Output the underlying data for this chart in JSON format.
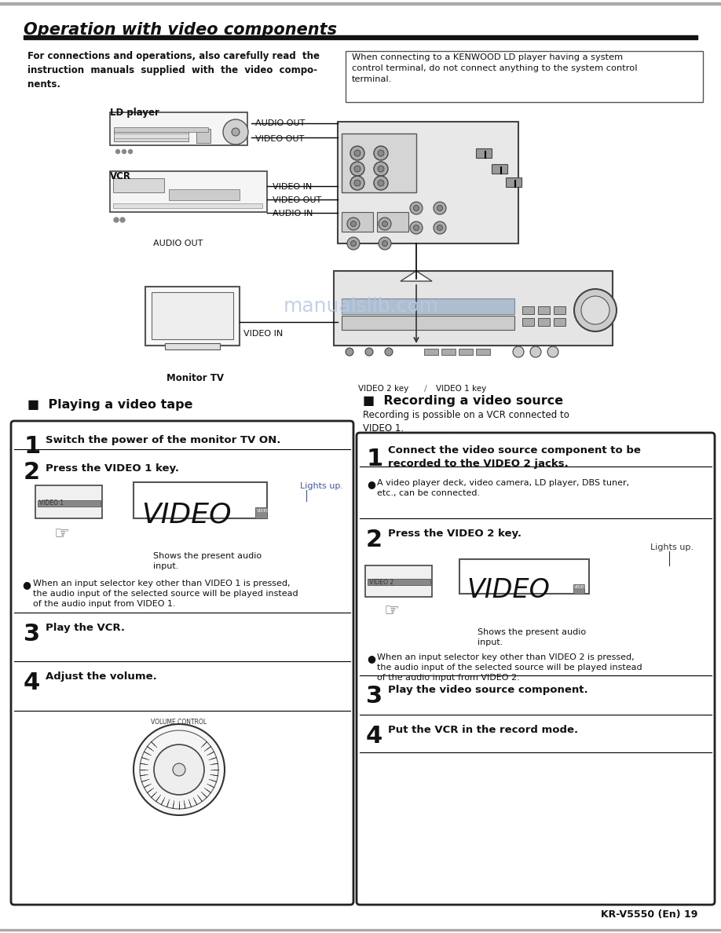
{
  "title": "Operation with video components",
  "page_number": "KR-V5550 (En) 19",
  "bg_color": "#ffffff",
  "text_color": "#000000",
  "watermark_color": "#b8c8e8",
  "left_panel_title": "■  Playing a video tape",
  "right_panel_title": "■  Recording a video source",
  "right_panel_subtitle": "Recording is possible on a VCR connected to\nVIDEO 1.",
  "intro_text": "For connections and operations, also carefully read  the\ninstruction  manuals  supplied  with  the  video  compo-\nnents.",
  "warning_box_text": "When connecting to a KENWOOD LD player having a system\ncontrol terminal, do not connect anything to the system control\nterminal.",
  "left_steps": [
    {
      "num": "1",
      "text": "Switch the power of the monitor TV ON."
    },
    {
      "num": "2",
      "text": "Press the VIDEO 1 key."
    },
    {
      "num": "3",
      "text": "Play the VCR."
    },
    {
      "num": "4",
      "text": "Adjust the volume."
    }
  ],
  "right_steps": [
    {
      "num": "1",
      "text": "Connect the video source component to be\nrecorded to the VIDEO 2 jacks."
    },
    {
      "num": "2",
      "text": "Press the VIDEO 2 key."
    },
    {
      "num": "3",
      "text": "Play the video source component."
    },
    {
      "num": "4",
      "text": "Put the VCR in the record mode."
    }
  ],
  "left_bullet1": "When an input selector key other than VIDEO 1 is pressed,\nthe audio input of the selected source will be played instead\nof the audio input from VIDEO 1.",
  "right_bullet1": "A video player deck, video camera, LD player, DBS tuner,\netc., can be connected.",
  "right_bullet2": "When an input selector key other than VIDEO 2 is pressed,\nthe audio input of the selected source will be played instead\nof the audio input from VIDEO 2.",
  "lights_up": "Lights up.",
  "shows_present": "Shows the present audio\ninput.",
  "ld_player_label": "LD player",
  "vcr_label": "VCR",
  "monitor_tv_label": "Monitor TV",
  "audio_out_label": "AUDIO OUT",
  "video_out_label": "VIDEO OUT",
  "video_in_label1": "VIDEO IN",
  "video_out_label2": "VIDEO OUT",
  "audio_in_label": "AUDIO IN",
  "audio_out_label2": "AUDIO OUT",
  "video_in_label2": "VIDEO IN",
  "video2_key_label": "VIDEO 2 key",
  "video1_key_label": "VIDEO 1 key",
  "video1_display": "VIDEO 1",
  "video2_display": "VIDEO 2"
}
